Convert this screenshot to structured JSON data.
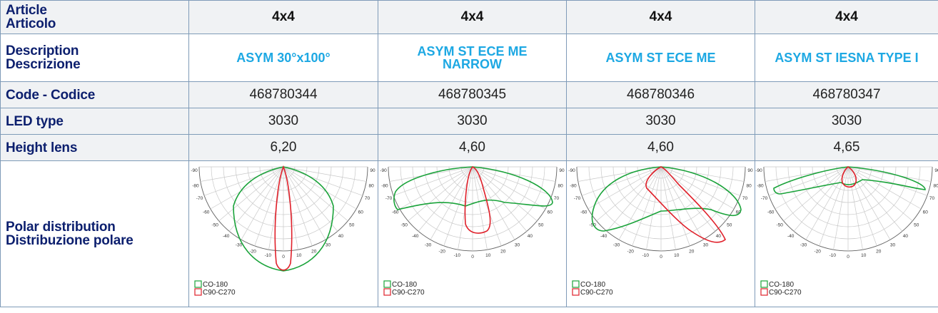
{
  "rows": {
    "article_label": [
      "Article",
      "Articolo"
    ],
    "description_label": [
      "Description",
      "Descrizione"
    ],
    "code_label": "Code - Codice",
    "led_label": "LED type",
    "height_label": "Height lens",
    "polar_label": [
      "Polar distribution",
      "Distribuzione polare"
    ]
  },
  "columns": [
    {
      "article": "4x4",
      "description": "ASYM 30°x100°",
      "code": "468780344",
      "led": "3030",
      "height": "6,20"
    },
    {
      "article": "4x4",
      "description": "ASYM ST ECE ME NARROW",
      "code": "468780345",
      "led": "3030",
      "height": "4,60"
    },
    {
      "article": "4x4",
      "description": "ASYM ST ECE ME",
      "code": "468780346",
      "led": "3030",
      "height": "4,60"
    },
    {
      "article": "4x4",
      "description": "ASYM ST IESNA TYPE I",
      "code": "468780347",
      "led": "3030",
      "height": "4,65"
    }
  ],
  "polar": {
    "angle_ticks": [
      "-90",
      "-80",
      "-70",
      "-60",
      "-50",
      "-40",
      "-30",
      "-20",
      "-10",
      "0",
      "10",
      "20",
      "30",
      "40",
      "50",
      "60",
      "70",
      "80",
      "90"
    ],
    "legend": [
      {
        "label": "CO-180",
        "color": "#1aa33a"
      },
      {
        "label": "C90-C270",
        "color": "#e0202a"
      }
    ]
  }
}
